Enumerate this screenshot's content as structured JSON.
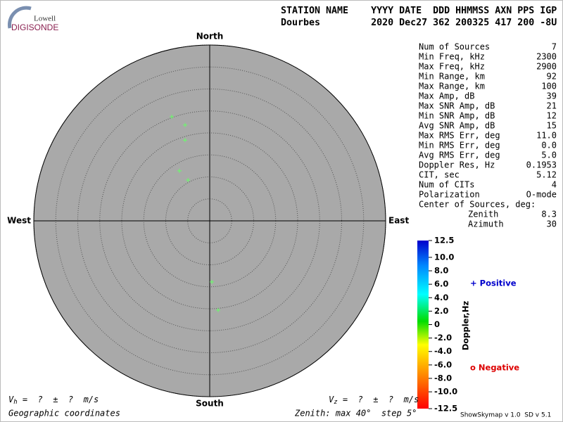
{
  "logo": {
    "top": "Lowell",
    "bottom": "DIGISONDE"
  },
  "header": {
    "labels": "STATION NAME    YYYY DATE  DDD HHMMSS AXN PPS IGP",
    "values": "Dourbes         2020 Dec27 362 200325 417 200 -8U"
  },
  "skymap": {
    "north": "North",
    "south": "South",
    "east": "East",
    "west": "West",
    "zenith_lim": [
      0,
      40
    ],
    "zenith_ticks": [
      5,
      10,
      15,
      20,
      25,
      30,
      35,
      40
    ],
    "source_color": "#66ff66",
    "sources": [
      {
        "zenith": 25.2,
        "azimuth": 340
      },
      {
        "zenith": 22.5,
        "azimuth": 345.6
      },
      {
        "zenith": 19.2,
        "azimuth": 343
      },
      {
        "zenith": 13.3,
        "azimuth": 328.8
      },
      {
        "zenith": 10.5,
        "azimuth": 332
      },
      {
        "zenith": 13.9,
        "azimuth": 178
      },
      {
        "zenith": 20.4,
        "azimuth": 174.6
      }
    ]
  },
  "stats": {
    "rows": [
      [
        "Num of Sources",
        "7"
      ],
      [
        "Min Freq, kHz",
        "2300"
      ],
      [
        "Max Freq, kHz",
        "2900"
      ],
      [
        "Min Range, km",
        "92"
      ],
      [
        "Max Range, km",
        "100"
      ],
      [
        "Max Amp, dB",
        "39"
      ],
      [
        "Max SNR Amp, dB",
        "21"
      ],
      [
        "Min SNR Amp, dB",
        "12"
      ],
      [
        "Avg SNR Amp, dB",
        "15"
      ],
      [
        "Max RMS Err, deg",
        "11.0"
      ],
      [
        "Min RMS Err, deg",
        "0.0"
      ],
      [
        "Avg RMS Err, deg",
        "5.0"
      ],
      [
        "Doppler Res, Hz",
        "0.1953"
      ],
      [
        "CIT, sec",
        "5.12"
      ],
      [
        "Num of CITs",
        "4"
      ],
      [
        "Polarization",
        "O-mode"
      ]
    ],
    "center_label": "Center of Sources, deg:",
    "center_rows": [
      [
        "Zenith",
        "8.3"
      ],
      [
        "Azimuth",
        "30"
      ]
    ]
  },
  "colorbar": {
    "label": "Doppler,Hz",
    "lim": [
      -12.5,
      12.5
    ],
    "ticks": [
      12.5,
      {
        "value": 10,
        "label": "10.0"
      },
      {
        "value": 8,
        "label": "8.0"
      },
      {
        "value": 6,
        "label": "6.0"
      },
      {
        "value": 4,
        "label": "4.0"
      },
      {
        "value": 2,
        "label": "2.0"
      },
      0,
      {
        "value": -2,
        "label": "-2.0"
      },
      {
        "value": -4,
        "label": "-4.0"
      },
      {
        "value": -6,
        "label": "-6.0"
      },
      {
        "value": -8,
        "label": "-8.0"
      },
      {
        "value": -10,
        "label": "-10.0"
      },
      -12.5
    ],
    "positive": "+ Positive",
    "negative": "o Negative"
  },
  "footer": {
    "vh": [
      "V",
      "h",
      " =  ?  ±  ?  m/s"
    ],
    "vz": [
      "V",
      "z",
      " =  ?  ±  ?  m/s"
    ],
    "coordinates": "Geographic coordinates",
    "zenith": "Zenith: max 40°  step 5°",
    "version": "ShowSkymap v 1.0  SD v 5.1"
  }
}
